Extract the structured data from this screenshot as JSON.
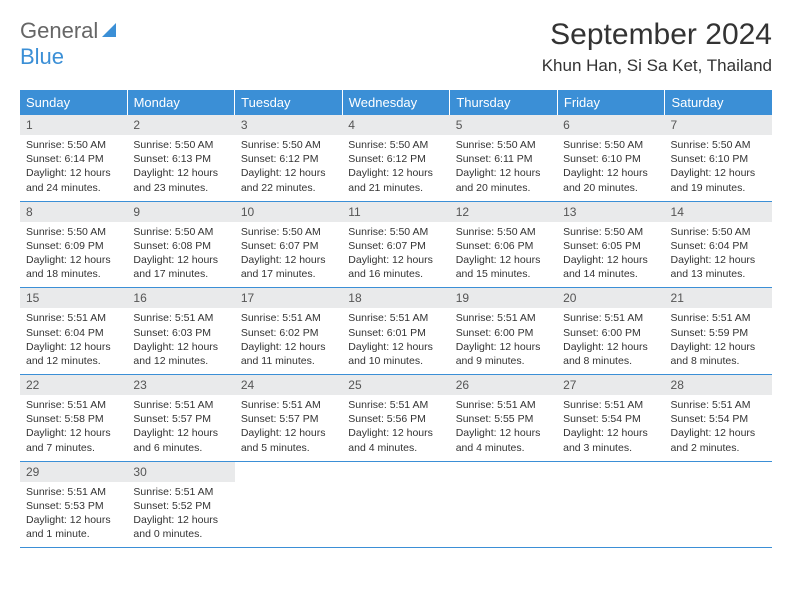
{
  "logo": {
    "text1": "General",
    "text2": "Blue",
    "shape_color": "#3b8fd6"
  },
  "title": "September 2024",
  "location": "Khun Han, Si Sa Ket, Thailand",
  "header_bg": "#3b8fd6",
  "header_fg": "#ffffff",
  "daynum_bg": "#e9eaeb",
  "border_color": "#3b8fd6",
  "daynames": [
    "Sunday",
    "Monday",
    "Tuesday",
    "Wednesday",
    "Thursday",
    "Friday",
    "Saturday"
  ],
  "weeks": [
    [
      {
        "n": "1",
        "sr": "Sunrise: 5:50 AM",
        "ss": "Sunset: 6:14 PM",
        "dl1": "Daylight: 12 hours",
        "dl2": "and 24 minutes."
      },
      {
        "n": "2",
        "sr": "Sunrise: 5:50 AM",
        "ss": "Sunset: 6:13 PM",
        "dl1": "Daylight: 12 hours",
        "dl2": "and 23 minutes."
      },
      {
        "n": "3",
        "sr": "Sunrise: 5:50 AM",
        "ss": "Sunset: 6:12 PM",
        "dl1": "Daylight: 12 hours",
        "dl2": "and 22 minutes."
      },
      {
        "n": "4",
        "sr": "Sunrise: 5:50 AM",
        "ss": "Sunset: 6:12 PM",
        "dl1": "Daylight: 12 hours",
        "dl2": "and 21 minutes."
      },
      {
        "n": "5",
        "sr": "Sunrise: 5:50 AM",
        "ss": "Sunset: 6:11 PM",
        "dl1": "Daylight: 12 hours",
        "dl2": "and 20 minutes."
      },
      {
        "n": "6",
        "sr": "Sunrise: 5:50 AM",
        "ss": "Sunset: 6:10 PM",
        "dl1": "Daylight: 12 hours",
        "dl2": "and 20 minutes."
      },
      {
        "n": "7",
        "sr": "Sunrise: 5:50 AM",
        "ss": "Sunset: 6:10 PM",
        "dl1": "Daylight: 12 hours",
        "dl2": "and 19 minutes."
      }
    ],
    [
      {
        "n": "8",
        "sr": "Sunrise: 5:50 AM",
        "ss": "Sunset: 6:09 PM",
        "dl1": "Daylight: 12 hours",
        "dl2": "and 18 minutes."
      },
      {
        "n": "9",
        "sr": "Sunrise: 5:50 AM",
        "ss": "Sunset: 6:08 PM",
        "dl1": "Daylight: 12 hours",
        "dl2": "and 17 minutes."
      },
      {
        "n": "10",
        "sr": "Sunrise: 5:50 AM",
        "ss": "Sunset: 6:07 PM",
        "dl1": "Daylight: 12 hours",
        "dl2": "and 17 minutes."
      },
      {
        "n": "11",
        "sr": "Sunrise: 5:50 AM",
        "ss": "Sunset: 6:07 PM",
        "dl1": "Daylight: 12 hours",
        "dl2": "and 16 minutes."
      },
      {
        "n": "12",
        "sr": "Sunrise: 5:50 AM",
        "ss": "Sunset: 6:06 PM",
        "dl1": "Daylight: 12 hours",
        "dl2": "and 15 minutes."
      },
      {
        "n": "13",
        "sr": "Sunrise: 5:50 AM",
        "ss": "Sunset: 6:05 PM",
        "dl1": "Daylight: 12 hours",
        "dl2": "and 14 minutes."
      },
      {
        "n": "14",
        "sr": "Sunrise: 5:50 AM",
        "ss": "Sunset: 6:04 PM",
        "dl1": "Daylight: 12 hours",
        "dl2": "and 13 minutes."
      }
    ],
    [
      {
        "n": "15",
        "sr": "Sunrise: 5:51 AM",
        "ss": "Sunset: 6:04 PM",
        "dl1": "Daylight: 12 hours",
        "dl2": "and 12 minutes."
      },
      {
        "n": "16",
        "sr": "Sunrise: 5:51 AM",
        "ss": "Sunset: 6:03 PM",
        "dl1": "Daylight: 12 hours",
        "dl2": "and 12 minutes."
      },
      {
        "n": "17",
        "sr": "Sunrise: 5:51 AM",
        "ss": "Sunset: 6:02 PM",
        "dl1": "Daylight: 12 hours",
        "dl2": "and 11 minutes."
      },
      {
        "n": "18",
        "sr": "Sunrise: 5:51 AM",
        "ss": "Sunset: 6:01 PM",
        "dl1": "Daylight: 12 hours",
        "dl2": "and 10 minutes."
      },
      {
        "n": "19",
        "sr": "Sunrise: 5:51 AM",
        "ss": "Sunset: 6:00 PM",
        "dl1": "Daylight: 12 hours",
        "dl2": "and 9 minutes."
      },
      {
        "n": "20",
        "sr": "Sunrise: 5:51 AM",
        "ss": "Sunset: 6:00 PM",
        "dl1": "Daylight: 12 hours",
        "dl2": "and 8 minutes."
      },
      {
        "n": "21",
        "sr": "Sunrise: 5:51 AM",
        "ss": "Sunset: 5:59 PM",
        "dl1": "Daylight: 12 hours",
        "dl2": "and 8 minutes."
      }
    ],
    [
      {
        "n": "22",
        "sr": "Sunrise: 5:51 AM",
        "ss": "Sunset: 5:58 PM",
        "dl1": "Daylight: 12 hours",
        "dl2": "and 7 minutes."
      },
      {
        "n": "23",
        "sr": "Sunrise: 5:51 AM",
        "ss": "Sunset: 5:57 PM",
        "dl1": "Daylight: 12 hours",
        "dl2": "and 6 minutes."
      },
      {
        "n": "24",
        "sr": "Sunrise: 5:51 AM",
        "ss": "Sunset: 5:57 PM",
        "dl1": "Daylight: 12 hours",
        "dl2": "and 5 minutes."
      },
      {
        "n": "25",
        "sr": "Sunrise: 5:51 AM",
        "ss": "Sunset: 5:56 PM",
        "dl1": "Daylight: 12 hours",
        "dl2": "and 4 minutes."
      },
      {
        "n": "26",
        "sr": "Sunrise: 5:51 AM",
        "ss": "Sunset: 5:55 PM",
        "dl1": "Daylight: 12 hours",
        "dl2": "and 4 minutes."
      },
      {
        "n": "27",
        "sr": "Sunrise: 5:51 AM",
        "ss": "Sunset: 5:54 PM",
        "dl1": "Daylight: 12 hours",
        "dl2": "and 3 minutes."
      },
      {
        "n": "28",
        "sr": "Sunrise: 5:51 AM",
        "ss": "Sunset: 5:54 PM",
        "dl1": "Daylight: 12 hours",
        "dl2": "and 2 minutes."
      }
    ],
    [
      {
        "n": "29",
        "sr": "Sunrise: 5:51 AM",
        "ss": "Sunset: 5:53 PM",
        "dl1": "Daylight: 12 hours",
        "dl2": "and 1 minute."
      },
      {
        "n": "30",
        "sr": "Sunrise: 5:51 AM",
        "ss": "Sunset: 5:52 PM",
        "dl1": "Daylight: 12 hours",
        "dl2": "and 0 minutes."
      },
      null,
      null,
      null,
      null,
      null
    ]
  ]
}
